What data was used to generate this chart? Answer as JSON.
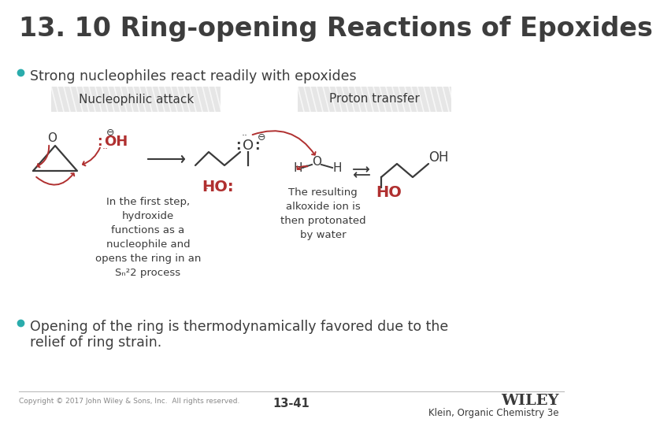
{
  "title": "13. 10 Ring-opening Reactions of Epoxides",
  "bullet1": "Strong nucleophiles react readily with epoxides",
  "bullet2_line1": "Opening of the ring is thermodynamically favored due to the",
  "bullet2_line2": "relief of ring strain.",
  "label_nucleophilic": "Nucleophilic attack",
  "label_proton": "Proton transfer",
  "text_first_step": "In the first step,\nhydroxide\nfunctions as a\nnucleophile and\nopens the ring in an\nSₙ²2 process",
  "text_alkoxide": "The resulting\nalkoxide ion is\nthen protonated\nby water",
  "ho_colon": "HO:",
  "ho": "HO",
  "oh": "OH",
  "footer_copyright": "Copyright © 2017 John Wiley & Sons, Inc.  All rights reserved.",
  "footer_page": "13-41",
  "footer_publisher": "WILEY",
  "footer_book": "Klein, Organic Chemistry 3e",
  "bg_color": "#ffffff",
  "title_color": "#3d3d3d",
  "bullet_color": "#3d3d3d",
  "red_color": "#b03030",
  "box_color": "#c8c8c8",
  "text_color": "#3a3a3a",
  "teal_bullet": "#2aacac"
}
